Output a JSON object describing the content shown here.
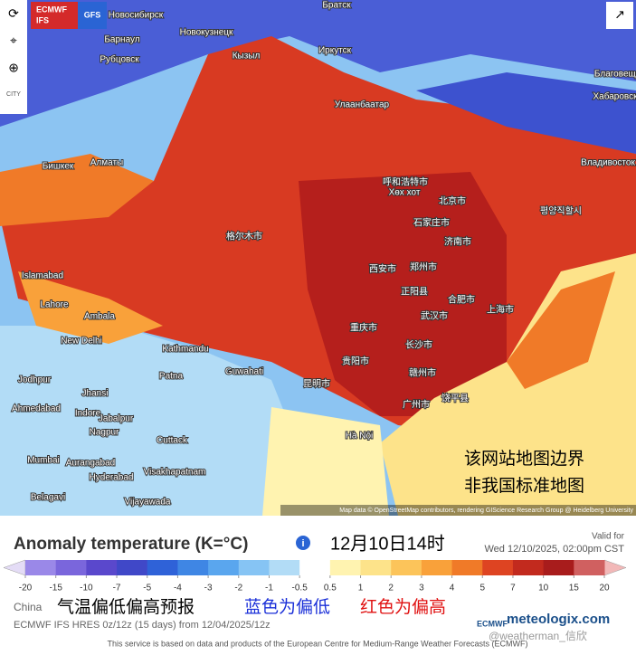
{
  "toolbar": {
    "model_a": "ECMWF",
    "model_a2": "IFS",
    "model_b": "GFS",
    "city": "CITY"
  },
  "map": {
    "labels": [
      "Новосибирск",
      "Барнаул",
      "Новокузнецк",
      "Рубцовск",
      "Кызыл",
      "Братск",
      "Иркутск",
      "Улаанбаатар",
      "Благовещенск",
      "Хабаровск",
      "Бишкек",
      "Алматы",
      "Владивосток",
      "呼和浩特市",
      "Хөх хот",
      "北京市",
      "평양직할시",
      "石家庄市",
      "济南市",
      "格尔木市",
      "西安市",
      "郑州市",
      "正阳县",
      "合肥市",
      "上海市",
      "武汉市",
      "重庆市",
      "长沙市",
      "贵阳市",
      "赣州市",
      "昆明市",
      "广州市",
      "饶平县",
      "Islamabad",
      "Lahore",
      "Ambala",
      "New Delhi",
      "Kathmandu",
      "Patna",
      "Guwahati",
      "Jodhpur",
      "Jhansi",
      "Ahmedabad",
      "Indore",
      "Jabalpur",
      "Nagpur",
      "Cuttack",
      "Mumbai",
      "Aurangabad",
      "Hyderabad",
      "Visakhapatnam",
      "Belagavi",
      "Vijayawada",
      "Hà Nội"
    ],
    "notice": [
      "该网站地图边界",
      "非我国标准地图"
    ],
    "attribution": "Map data © OpenStreetMap contributors, rendering GIScience Research Group @ Heidelberg University"
  },
  "header": {
    "title": "Anomaly temperature (K=°C)",
    "time": "12月10日14时",
    "valid_for": "Valid for",
    "valid_date": "Wed 12/10/2025, 02:00pm CST"
  },
  "scale": {
    "ticks": [
      -20,
      -15,
      -10,
      -7,
      -5,
      -4,
      -3,
      -2,
      -1,
      -0.5,
      0.5,
      1,
      2,
      3,
      4,
      5,
      7,
      10,
      15,
      20
    ],
    "colors": [
      "#e4dcf6",
      "#9a88e8",
      "#7a66dc",
      "#5a48cc",
      "#4048c8",
      "#2f62d8",
      "#3f86e4",
      "#5aa6ee",
      "#86c4f4",
      "#b2dcf6",
      "#ffffff",
      "#fff3b0",
      "#fde38a",
      "#fcc45a",
      "#f9a13a",
      "#f07a28",
      "#de4422",
      "#c22a1e",
      "#a81c1c",
      "#d06060",
      "#f2b8b8"
    ]
  },
  "caption": {
    "region": "China",
    "note": "气温偏低偏高预报",
    "blue_note": "蓝色为偏低",
    "red_note": "红色为偏高",
    "run": "ECMWF IFS HRES 0z/12z (15 days) from 12/04/2025/12z",
    "footer": "This service is based on data and products of the European Centre for Medium-Range Weather Forecasts (ECMWF)",
    "ecmwf_logo": "ECMWF",
    "brand": "meteologix.com",
    "watermark": "@weatherman_信欣"
  }
}
